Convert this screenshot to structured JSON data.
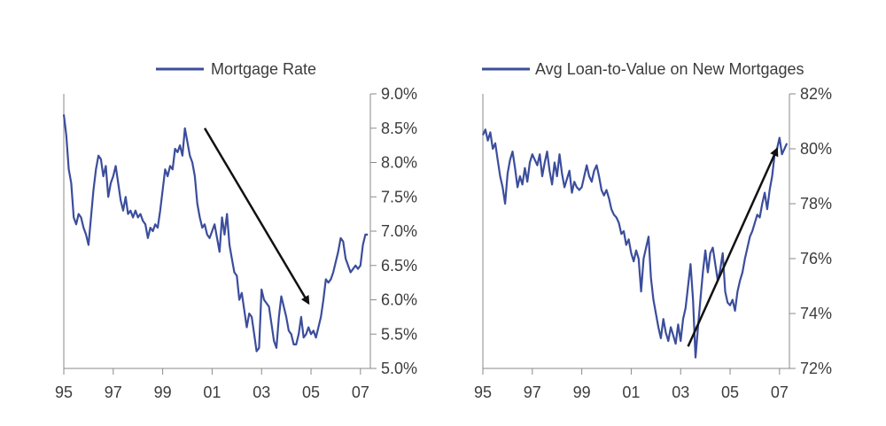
{
  "chart_data": [
    {
      "type": "line",
      "title": "",
      "xlabel": "",
      "ylabel": "",
      "legend": {
        "placement": "top-right",
        "entries": [
          "Mortgage Rate"
        ]
      },
      "x_tick_labels": [
        "95",
        "97",
        "99",
        "01",
        "03",
        "05",
        "07"
      ],
      "x_tick_values": [
        1995,
        1997,
        1999,
        2001,
        2003,
        2005,
        2007
      ],
      "xlim": [
        1995,
        2007.4
      ],
      "y_tick_labels": [
        "5.0%",
        "5.5%",
        "6.0%",
        "6.5%",
        "7.0%",
        "7.5%",
        "8.0%",
        "8.5%",
        "9.0%"
      ],
      "y_tick_values": [
        5.0,
        5.5,
        6.0,
        6.5,
        7.0,
        7.5,
        8.0,
        8.5,
        9.0
      ],
      "ylim": [
        5.0,
        9.0
      ],
      "y_axis_side": "right",
      "grid": false,
      "color": "#3b4d9c",
      "series": [
        {
          "name": "Mortgage Rate",
          "x": [
            1995.0,
            1995.1,
            1995.2,
            1995.3,
            1995.4,
            1995.5,
            1995.6,
            1995.7,
            1995.8,
            1995.9,
            1996.0,
            1996.1,
            1996.2,
            1996.3,
            1996.4,
            1996.5,
            1996.6,
            1996.7,
            1996.8,
            1996.9,
            1997.0,
            1997.1,
            1997.2,
            1997.3,
            1997.4,
            1997.5,
            1997.6,
            1997.7,
            1997.8,
            1997.9,
            1998.0,
            1998.1,
            1998.2,
            1998.3,
            1998.4,
            1998.5,
            1998.6,
            1998.7,
            1998.8,
            1998.9,
            1999.0,
            1999.1,
            1999.2,
            1999.3,
            1999.4,
            1999.5,
            1999.6,
            1999.7,
            1999.8,
            1999.9,
            2000.0,
            2000.1,
            2000.2,
            2000.3,
            2000.4,
            2000.5,
            2000.6,
            2000.7,
            2000.8,
            2000.9,
            2001.0,
            2001.1,
            2001.2,
            2001.3,
            2001.4,
            2001.5,
            2001.6,
            2001.7,
            2001.8,
            2001.9,
            2002.0,
            2002.1,
            2002.2,
            2002.3,
            2002.4,
            2002.5,
            2002.6,
            2002.7,
            2002.8,
            2002.9,
            2003.0,
            2003.1,
            2003.2,
            2003.3,
            2003.4,
            2003.5,
            2003.6,
            2003.7,
            2003.8,
            2003.9,
            2004.0,
            2004.1,
            2004.2,
            2004.3,
            2004.4,
            2004.5,
            2004.6,
            2004.7,
            2004.8,
            2004.9,
            2005.0,
            2005.1,
            2005.2,
            2005.3,
            2005.4,
            2005.5,
            2005.6,
            2005.7,
            2005.8,
            2005.9,
            2006.0,
            2006.1,
            2006.2,
            2006.3,
            2006.4,
            2006.5,
            2006.6,
            2006.7,
            2006.8,
            2006.9,
            2007.0,
            2007.1,
            2007.2,
            2007.3
          ],
          "y": [
            8.7,
            8.4,
            7.9,
            7.7,
            7.2,
            7.1,
            7.25,
            7.2,
            7.05,
            6.95,
            6.8,
            7.2,
            7.6,
            7.9,
            8.1,
            8.05,
            7.8,
            7.95,
            7.5,
            7.7,
            7.8,
            7.95,
            7.7,
            7.45,
            7.3,
            7.5,
            7.25,
            7.3,
            7.2,
            7.3,
            7.2,
            7.25,
            7.15,
            7.1,
            6.9,
            7.05,
            7.0,
            7.1,
            7.05,
            7.3,
            7.6,
            7.9,
            7.8,
            7.95,
            7.9,
            8.2,
            8.15,
            8.25,
            8.1,
            8.5,
            8.3,
            8.1,
            8.0,
            7.8,
            7.4,
            7.2,
            7.05,
            7.1,
            6.95,
            6.9,
            7.0,
            7.1,
            6.9,
            6.7,
            7.2,
            6.95,
            7.25,
            6.8,
            6.6,
            6.4,
            6.35,
            6.0,
            6.1,
            5.85,
            5.6,
            5.8,
            5.75,
            5.5,
            5.25,
            5.3,
            6.15,
            6.0,
            5.95,
            5.9,
            5.65,
            5.4,
            5.3,
            5.75,
            6.05,
            5.9,
            5.75,
            5.55,
            5.5,
            5.35,
            5.35,
            5.5,
            5.75,
            5.45,
            5.5,
            5.6,
            5.5,
            5.55,
            5.45,
            5.6,
            5.75,
            6.0,
            6.3,
            6.25,
            6.3,
            6.4,
            6.55,
            6.7,
            6.9,
            6.85,
            6.6,
            6.5,
            6.4,
            6.45,
            6.5,
            6.45,
            6.5,
            6.8,
            6.95,
            6.95
          ]
        }
      ],
      "annotations": [
        {
          "type": "arrow",
          "from": [
            2000.7,
            8.5
          ],
          "to": [
            2004.9,
            5.95
          ]
        }
      ]
    },
    {
      "type": "line",
      "title": "",
      "xlabel": "",
      "ylabel": "",
      "legend": {
        "placement": "top-right",
        "entries": [
          "Avg Loan-to-Value on New Mortgages"
        ]
      },
      "x_tick_labels": [
        "95",
        "97",
        "99",
        "01",
        "03",
        "05",
        "07"
      ],
      "x_tick_values": [
        1995,
        1997,
        1999,
        2001,
        2003,
        2005,
        2007
      ],
      "xlim": [
        1995,
        2007.4
      ],
      "y_tick_labels": [
        "72%",
        "74%",
        "76%",
        "78%",
        "80%",
        "82%"
      ],
      "y_tick_values": [
        72,
        74,
        76,
        78,
        80,
        82
      ],
      "ylim": [
        72,
        82
      ],
      "y_axis_side": "right",
      "grid": false,
      "color": "#3b4d9c",
      "series": [
        {
          "name": "Avg Loan-to-Value on New Mortgages",
          "x": [
            1995.0,
            1995.1,
            1995.2,
            1995.3,
            1995.4,
            1995.5,
            1995.6,
            1995.7,
            1995.8,
            1995.9,
            1996.0,
            1996.1,
            1996.2,
            1996.3,
            1996.4,
            1996.5,
            1996.6,
            1996.7,
            1996.8,
            1996.9,
            1997.0,
            1997.1,
            1997.2,
            1997.3,
            1997.4,
            1997.5,
            1997.6,
            1997.7,
            1997.8,
            1997.9,
            1998.0,
            1998.1,
            1998.2,
            1998.3,
            1998.4,
            1998.5,
            1998.6,
            1998.7,
            1998.8,
            1998.9,
            1999.0,
            1999.1,
            1999.2,
            1999.3,
            1999.4,
            1999.5,
            1999.6,
            1999.7,
            1999.8,
            1999.9,
            2000.0,
            2000.1,
            2000.2,
            2000.3,
            2000.4,
            2000.5,
            2000.6,
            2000.7,
            2000.8,
            2000.9,
            2001.0,
            2001.1,
            2001.2,
            2001.3,
            2001.4,
            2001.5,
            2001.6,
            2001.7,
            2001.8,
            2001.9,
            2002.0,
            2002.1,
            2002.2,
            2002.3,
            2002.4,
            2002.5,
            2002.6,
            2002.7,
            2002.8,
            2002.9,
            2003.0,
            2003.1,
            2003.2,
            2003.3,
            2003.4,
            2003.5,
            2003.6,
            2003.7,
            2003.8,
            2003.9,
            2004.0,
            2004.1,
            2004.2,
            2004.3,
            2004.4,
            2004.5,
            2004.6,
            2004.7,
            2004.8,
            2004.9,
            2005.0,
            2005.1,
            2005.2,
            2005.3,
            2005.4,
            2005.5,
            2005.6,
            2005.7,
            2005.8,
            2005.9,
            2006.0,
            2006.1,
            2006.2,
            2006.3,
            2006.4,
            2006.5,
            2006.6,
            2006.7,
            2006.8,
            2006.9,
            2007.0,
            2007.1,
            2007.2,
            2007.3
          ],
          "y": [
            80.5,
            80.7,
            80.3,
            80.6,
            80.0,
            80.2,
            79.6,
            79.0,
            78.6,
            78.0,
            79.1,
            79.6,
            79.9,
            79.3,
            78.6,
            79.0,
            78.7,
            79.3,
            78.8,
            79.5,
            79.8,
            79.6,
            79.4,
            79.8,
            79.0,
            79.5,
            79.9,
            79.2,
            78.7,
            79.5,
            79.0,
            79.8,
            79.1,
            78.6,
            78.9,
            79.2,
            78.4,
            78.8,
            78.6,
            78.5,
            78.6,
            79.0,
            79.4,
            79.0,
            78.8,
            79.2,
            79.4,
            79.0,
            78.5,
            78.3,
            78.5,
            78.2,
            77.8,
            77.6,
            77.5,
            77.3,
            76.9,
            77.0,
            76.5,
            76.7,
            76.2,
            75.9,
            76.3,
            76.0,
            74.8,
            76.0,
            76.4,
            76.8,
            75.3,
            74.5,
            74.0,
            73.5,
            73.1,
            73.8,
            73.3,
            73.0,
            73.5,
            73.2,
            72.9,
            73.6,
            73.0,
            73.8,
            74.2,
            75.0,
            75.8,
            74.5,
            72.4,
            73.5,
            74.5,
            75.5,
            76.3,
            75.5,
            76.2,
            76.4,
            75.8,
            75.2,
            75.6,
            76.2,
            74.8,
            74.4,
            74.3,
            74.5,
            74.1,
            74.8,
            75.2,
            75.5,
            76.0,
            76.4,
            76.8,
            77.0,
            77.3,
            77.6,
            77.5,
            78.0,
            78.4,
            77.8,
            78.5,
            79.0,
            79.8,
            80.0,
            80.4,
            79.8,
            80.0,
            80.2
          ]
        }
      ],
      "annotations": [
        {
          "type": "arrow",
          "from": [
            2003.3,
            72.8
          ],
          "to": [
            2006.9,
            80.0
          ]
        }
      ]
    }
  ]
}
